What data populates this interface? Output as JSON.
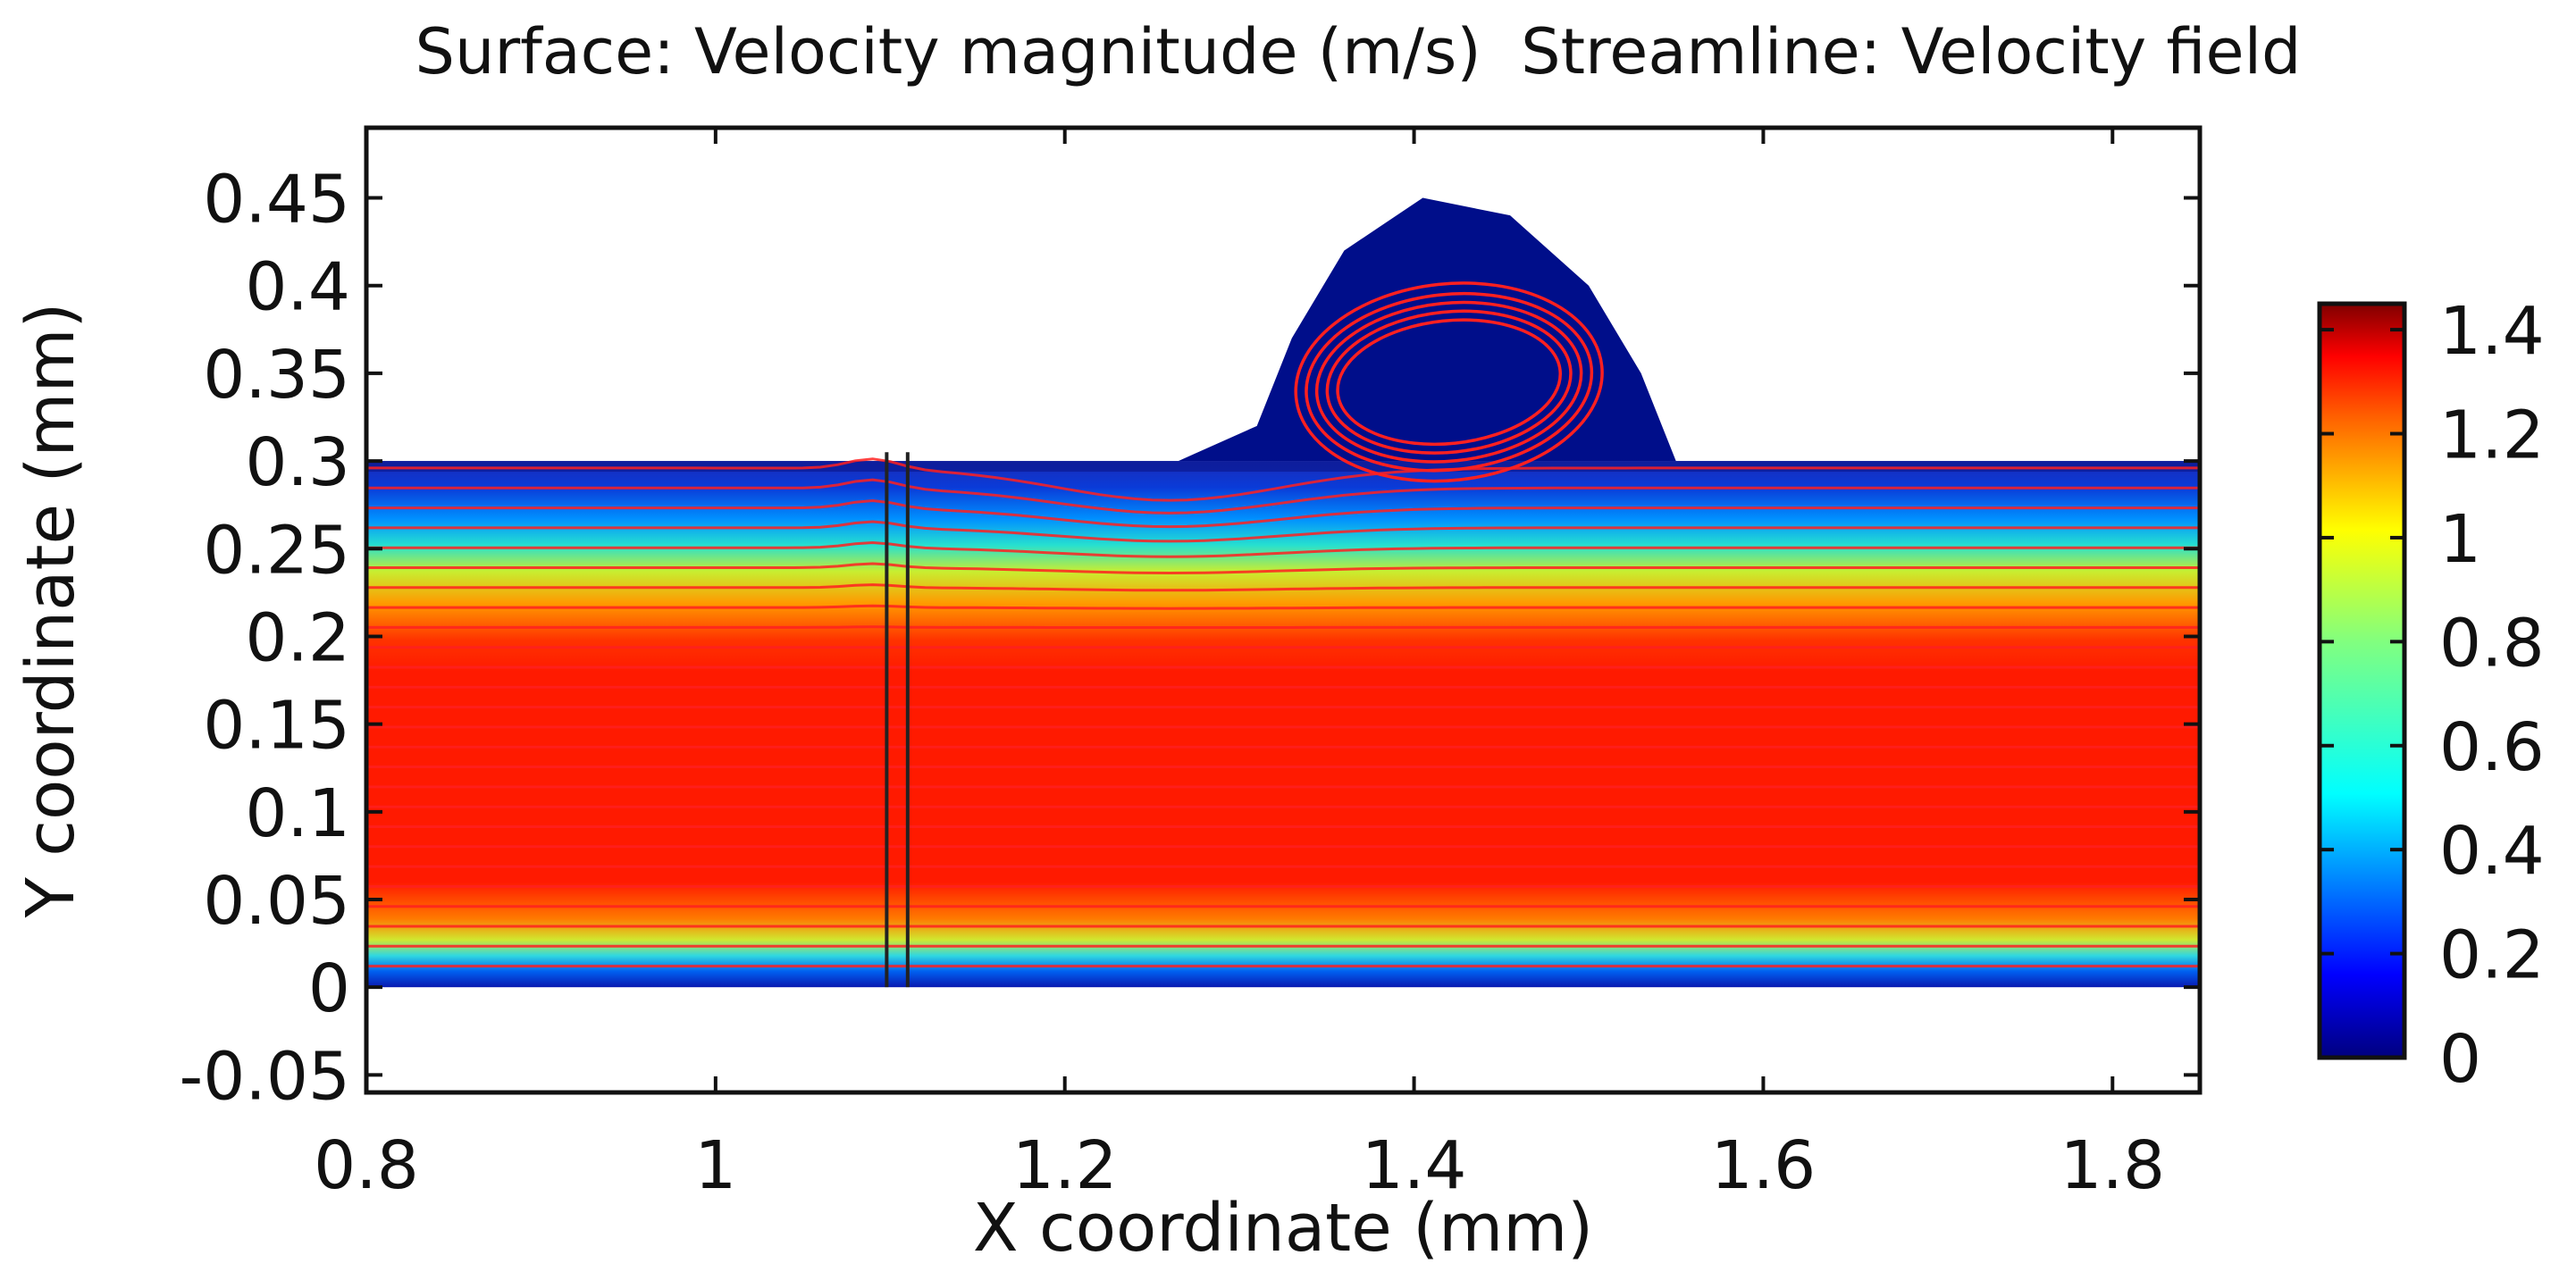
{
  "chart_data": {
    "type": "heatmap",
    "title": "Surface: Velocity magnitude (m/s)  Streamline: Velocity field",
    "xlabel": "X coordinate (mm)",
    "ylabel": "Y coordinate (mm)",
    "xlim": [
      0.8,
      1.85
    ],
    "ylim": [
      -0.06,
      0.49
    ],
    "x_ticks": [
      0.8,
      1.0,
      1.2,
      1.4,
      1.6,
      1.8
    ],
    "x_tick_labels": [
      "0.8",
      "1",
      "1.2",
      "1.4",
      "1.6",
      "1.8"
    ],
    "y_ticks": [
      0.45,
      0.4,
      0.35,
      0.3,
      0.25,
      0.2,
      0.15,
      0.1,
      0.05,
      0,
      -0.05
    ],
    "y_tick_labels": [
      "0.45",
      "0.4",
      "0.35",
      "0.3",
      "0.25",
      "0.2",
      "0.15",
      "0.1",
      "0.05",
      "0",
      "-0.05"
    ],
    "channel": {
      "x_range": [
        0.8,
        1.85
      ],
      "y_range": [
        0.0,
        0.3
      ]
    },
    "cavity_outline": [
      [
        1.265,
        0.3
      ],
      [
        1.31,
        0.32
      ],
      [
        1.33,
        0.37
      ],
      [
        1.36,
        0.42
      ],
      [
        1.405,
        0.45
      ],
      [
        1.455,
        0.44
      ],
      [
        1.5,
        0.4
      ],
      [
        1.53,
        0.35
      ],
      [
        1.55,
        0.3
      ]
    ],
    "vortex_center": [
      1.42,
      0.345
    ],
    "surface_field": {
      "quantity": "Velocity magnitude",
      "unit": "m/s",
      "core_value": 1.3,
      "wall_value": 0.0
    },
    "colorbar": {
      "range": [
        0,
        1.45
      ],
      "ticks": [
        1.4,
        1.2,
        1.0,
        0.8,
        0.6,
        0.4,
        0.2,
        0
      ],
      "tick_labels": [
        "1.4",
        "1.2",
        "1",
        "0.8",
        "0.6",
        "0.4",
        "0.2",
        "0"
      ],
      "colormap": "rainbow"
    },
    "colors": {
      "streamline": "#ff2020",
      "cavity_fill": "#000e8a",
      "core_fill": "#ff1a00",
      "axis": "#111111"
    }
  }
}
